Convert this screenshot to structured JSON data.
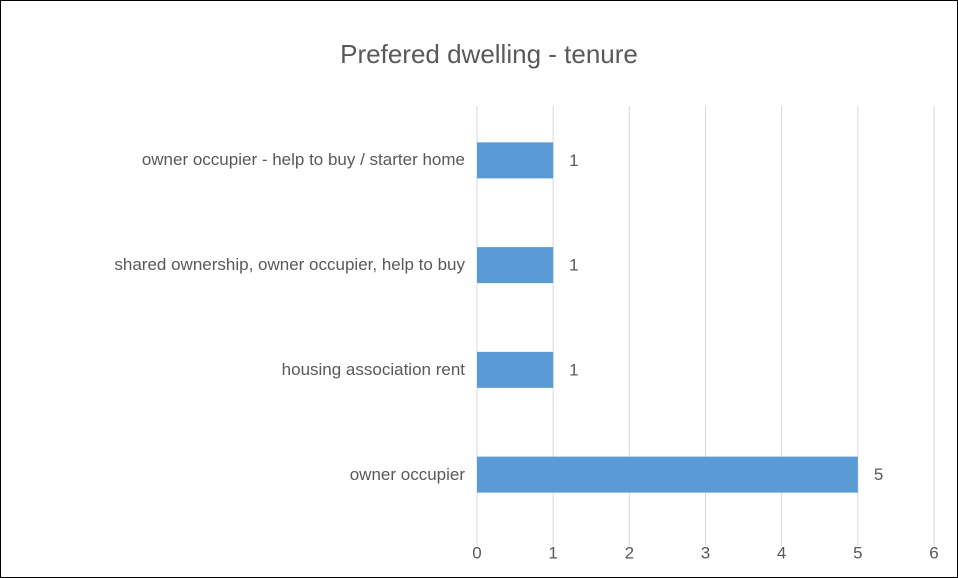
{
  "chart_data": {
    "type": "bar",
    "orientation": "horizontal",
    "title": "Prefered dwelling - tenure",
    "categories": [
      "owner occupier - help to buy / starter home",
      "shared ownership, owner occupier, help to buy",
      "housing association rent",
      "owner occupier"
    ],
    "values": [
      1,
      1,
      1,
      5
    ],
    "color": "#5b9bd5",
    "xlim": [
      0,
      6
    ],
    "xticks": [
      0,
      1,
      2,
      3,
      4,
      5,
      6
    ],
    "grid": true
  }
}
